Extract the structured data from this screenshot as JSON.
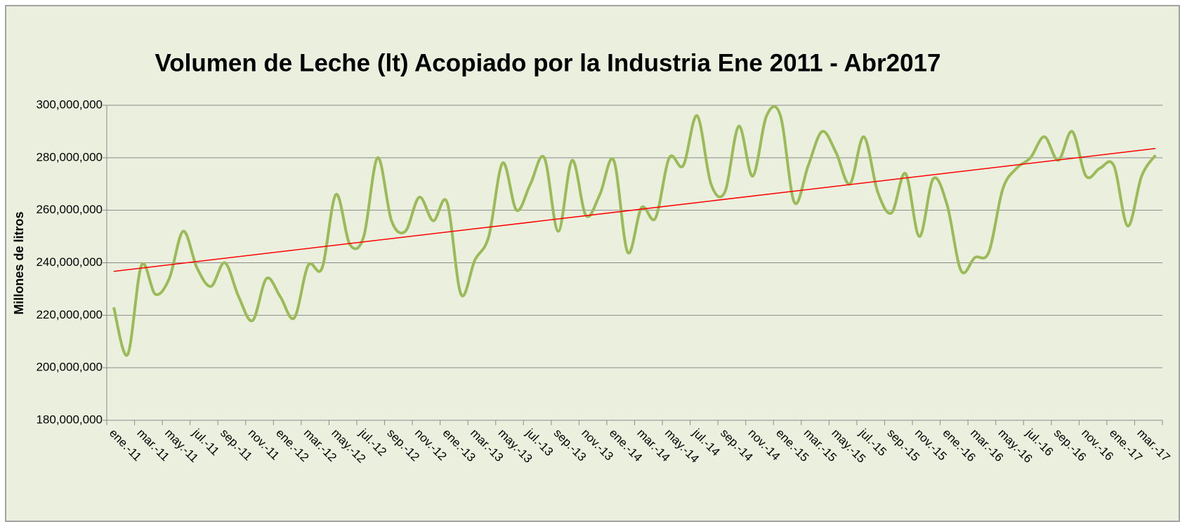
{
  "chart_data": {
    "type": "line",
    "title": "Volumen de Leche (lt) Acopiado por la Industria Ene 2011 -  Abr2017",
    "y_label": "Millones de litros",
    "categories": [
      "ene.-11",
      null,
      "mar.-11",
      null,
      "may.-11",
      null,
      "jul.-11",
      null,
      "sep.-11",
      null,
      "nov.-11",
      null,
      "ene.-12",
      null,
      "mar.-12",
      null,
      "may.-12",
      null,
      "jul.-12",
      null,
      "sep.-12",
      null,
      "nov.-12",
      null,
      "ene.-13",
      null,
      "mar.-13",
      null,
      "may.-13",
      null,
      "jul.-13",
      null,
      "sep.-13",
      null,
      "nov.-13",
      null,
      "ene.-14",
      null,
      "mar.-14",
      null,
      "may.-14",
      null,
      "jul.-14",
      null,
      "sep.-14",
      null,
      "nov.-14",
      null,
      "ene.-15",
      null,
      "mar.-15",
      null,
      "may.-15",
      null,
      "jul.-15",
      null,
      "sep.-15",
      null,
      "nov.-15",
      null,
      "ene.-16",
      null,
      "mar.-16",
      null,
      "may.-16",
      null,
      "jul.-16",
      null,
      "sep.-16",
      null,
      "nov.-16",
      null,
      "ene.-17",
      null,
      "mar.-17",
      null
    ],
    "series": [
      {
        "color": "#9bbb59",
        "values": [
          223000000,
          205000000,
          239000000,
          228000000,
          234000000,
          252000000,
          238000000,
          231000000,
          240000000,
          227000000,
          218000000,
          234000000,
          227000000,
          219000000,
          239000000,
          238000000,
          266000000,
          247000000,
          250000000,
          280000000,
          256000000,
          252000000,
          265000000,
          256000000,
          263000000,
          228000000,
          241000000,
          250000000,
          278000000,
          260000000,
          270000000,
          280000000,
          252000000,
          279000000,
          258000000,
          266000000,
          279000000,
          244000000,
          261000000,
          257000000,
          280000000,
          277000000,
          296000000,
          270000000,
          267000000,
          292000000,
          273000000,
          296000000,
          296000000,
          263000000,
          277000000,
          290000000,
          282000000,
          270000000,
          288000000,
          267000000,
          259000000,
          274000000,
          250000000,
          272000000,
          262000000,
          237000000,
          242000000,
          244000000,
          268000000,
          276000000,
          280000000,
          288000000,
          279000000,
          290000000,
          273000000,
          276000000,
          277000000,
          254000000,
          273000000,
          281000000
        ]
      }
    ],
    "trendline": {
      "type": "linear",
      "color": "#ff0000"
    },
    "ylim": [
      180000000,
      300000000
    ],
    "yticks": [
      {
        "value": 180000000,
        "label": "180,000,000"
      },
      {
        "value": 200000000,
        "label": "200,000,000"
      },
      {
        "value": 220000000,
        "label": "220,000,000"
      },
      {
        "value": 240000000,
        "label": "240,000,000"
      },
      {
        "value": 260000000,
        "label": "260,000,000"
      },
      {
        "value": 280000000,
        "label": "280,000,000"
      },
      {
        "value": 300000000,
        "label": "300,000,000"
      }
    ],
    "grid": true
  }
}
